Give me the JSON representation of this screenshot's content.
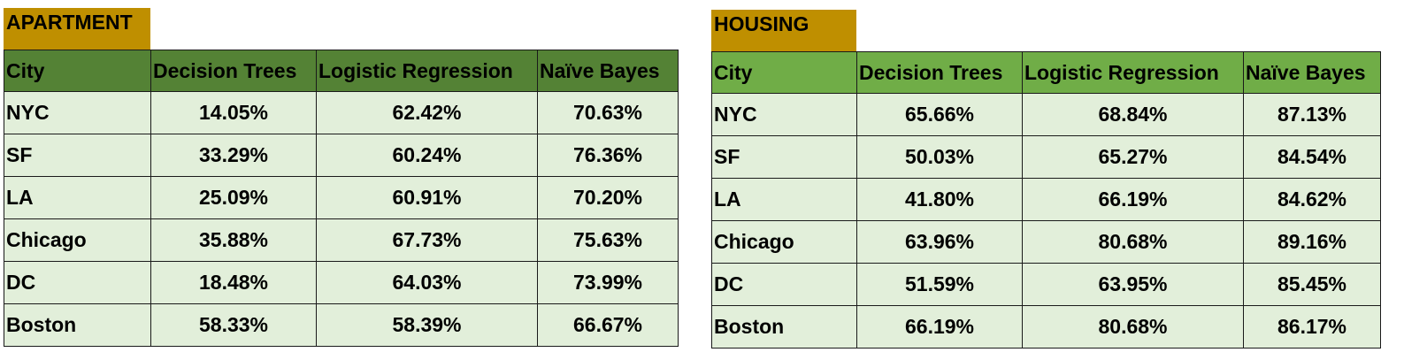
{
  "tables": [
    {
      "label": "APARTMENT",
      "headers": [
        "City",
        "Decision Trees",
        "Logistic Regression",
        "Naïve Bayes"
      ],
      "rows": [
        [
          "NYC",
          "14.05%",
          "62.42%",
          "70.63%"
        ],
        [
          "SF",
          "33.29%",
          "60.24%",
          "76.36%"
        ],
        [
          "LA",
          "25.09%",
          "60.91%",
          "70.20%"
        ],
        [
          "Chicago",
          "35.88%",
          "67.73%",
          "75.63%"
        ],
        [
          "DC",
          "18.48%",
          "64.03%",
          "73.99%"
        ],
        [
          "Boston",
          "58.33%",
          "58.39%",
          "66.67%"
        ]
      ]
    },
    {
      "label": "HOUSING",
      "headers": [
        "City",
        "Decision Trees",
        "Logistic Regression",
        "Naïve Bayes"
      ],
      "rows": [
        [
          "NYC",
          "65.66%",
          "68.84%",
          "87.13%"
        ],
        [
          "SF",
          "50.03%",
          "65.27%",
          "84.54%"
        ],
        [
          "LA",
          "41.80%",
          "66.19%",
          "84.62%"
        ],
        [
          "Chicago",
          "63.96%",
          "80.68%",
          "89.16%"
        ],
        [
          "DC",
          "51.59%",
          "63.95%",
          "85.45%"
        ],
        [
          "Boston",
          "66.19%",
          "80.68%",
          "86.17%"
        ]
      ]
    }
  ],
  "colors": {
    "label_bg": "#bf8f00",
    "header_bg_apartment": "#548235",
    "header_bg_housing": "#70ad47",
    "cell_bg": "#e2efda"
  }
}
